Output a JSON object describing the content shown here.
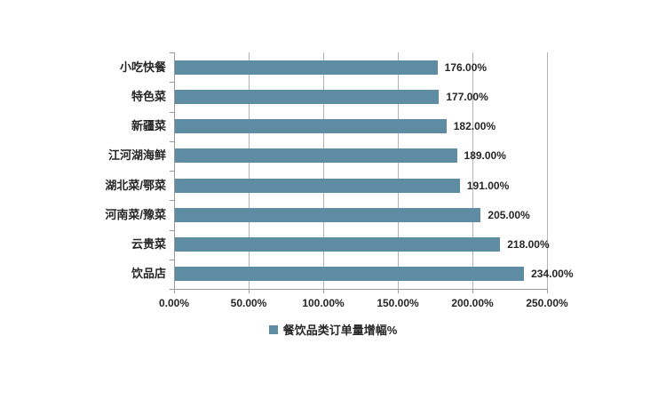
{
  "chart_data": {
    "type": "bar",
    "orientation": "horizontal",
    "title": "",
    "categories": [
      "小吃快餐",
      "特色菜",
      "新疆菜",
      "江河湖海鲜",
      "湖北菜/鄂菜",
      "河南菜/豫菜",
      "云贵菜",
      "饮品店"
    ],
    "values": [
      176,
      177,
      182,
      189,
      191,
      205,
      218,
      234
    ],
    "value_labels": [
      "176.00%",
      "177.00%",
      "182.00%",
      "189.00%",
      "191.00%",
      "205.00%",
      "218.00%",
      "234.00%"
    ],
    "x_ticks": [
      "0.00%",
      "50.00%",
      "100.00%",
      "150.00%",
      "200.00%",
      "250.00%"
    ],
    "xlim": [
      0,
      250
    ],
    "xlabel": "",
    "ylabel": "",
    "grid": "vertical",
    "legend": "餐饮品类订单量增幅%",
    "legend_position": "bottom",
    "colors": {
      "bar": "#5e8ca3",
      "grid": "#b3b3b3",
      "axis": "#9a9a9a",
      "text": "#262626"
    }
  }
}
